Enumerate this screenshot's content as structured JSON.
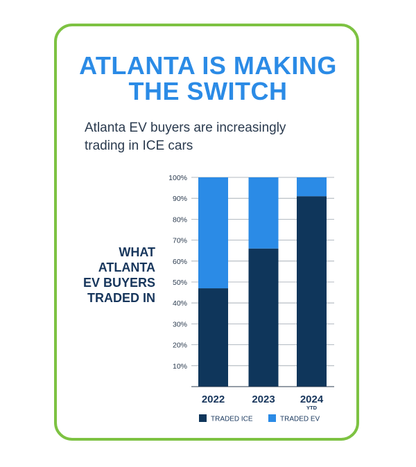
{
  "title_lines": [
    "ATLANTA IS MAKING",
    "THE SWITCH"
  ],
  "subtitle_lines": [
    "Atlanta EV buyers are increasingly",
    "trading in ICE cars"
  ],
  "side_label_lines": [
    "WHAT",
    "ATLANTA",
    "EV BUYERS",
    "TRADED IN"
  ],
  "colors": {
    "border": "#7dc242",
    "title": "#2b8be6",
    "traded_ice": "#0f365b",
    "traded_ev": "#2b8be6",
    "text_dark": "#17365c"
  },
  "chart_data": {
    "type": "bar",
    "stacked": true,
    "categories": [
      "2022",
      "2023",
      "2024"
    ],
    "category_sublabels": [
      "",
      "",
      "YTD"
    ],
    "series": [
      {
        "name": "TRADED ICE",
        "values": [
          47,
          66,
          91
        ]
      },
      {
        "name": "TRADED EV",
        "values": [
          53,
          34,
          9
        ]
      }
    ],
    "ylim": [
      0,
      100
    ],
    "yticks": [
      "100%",
      "90%",
      "80%",
      "70%",
      "60%",
      "50%",
      "40%",
      "30%",
      "20%",
      "10%"
    ],
    "ytick_values": [
      100,
      90,
      80,
      70,
      60,
      50,
      40,
      30,
      20,
      10
    ],
    "grid": true,
    "legend_position": "bottom"
  }
}
